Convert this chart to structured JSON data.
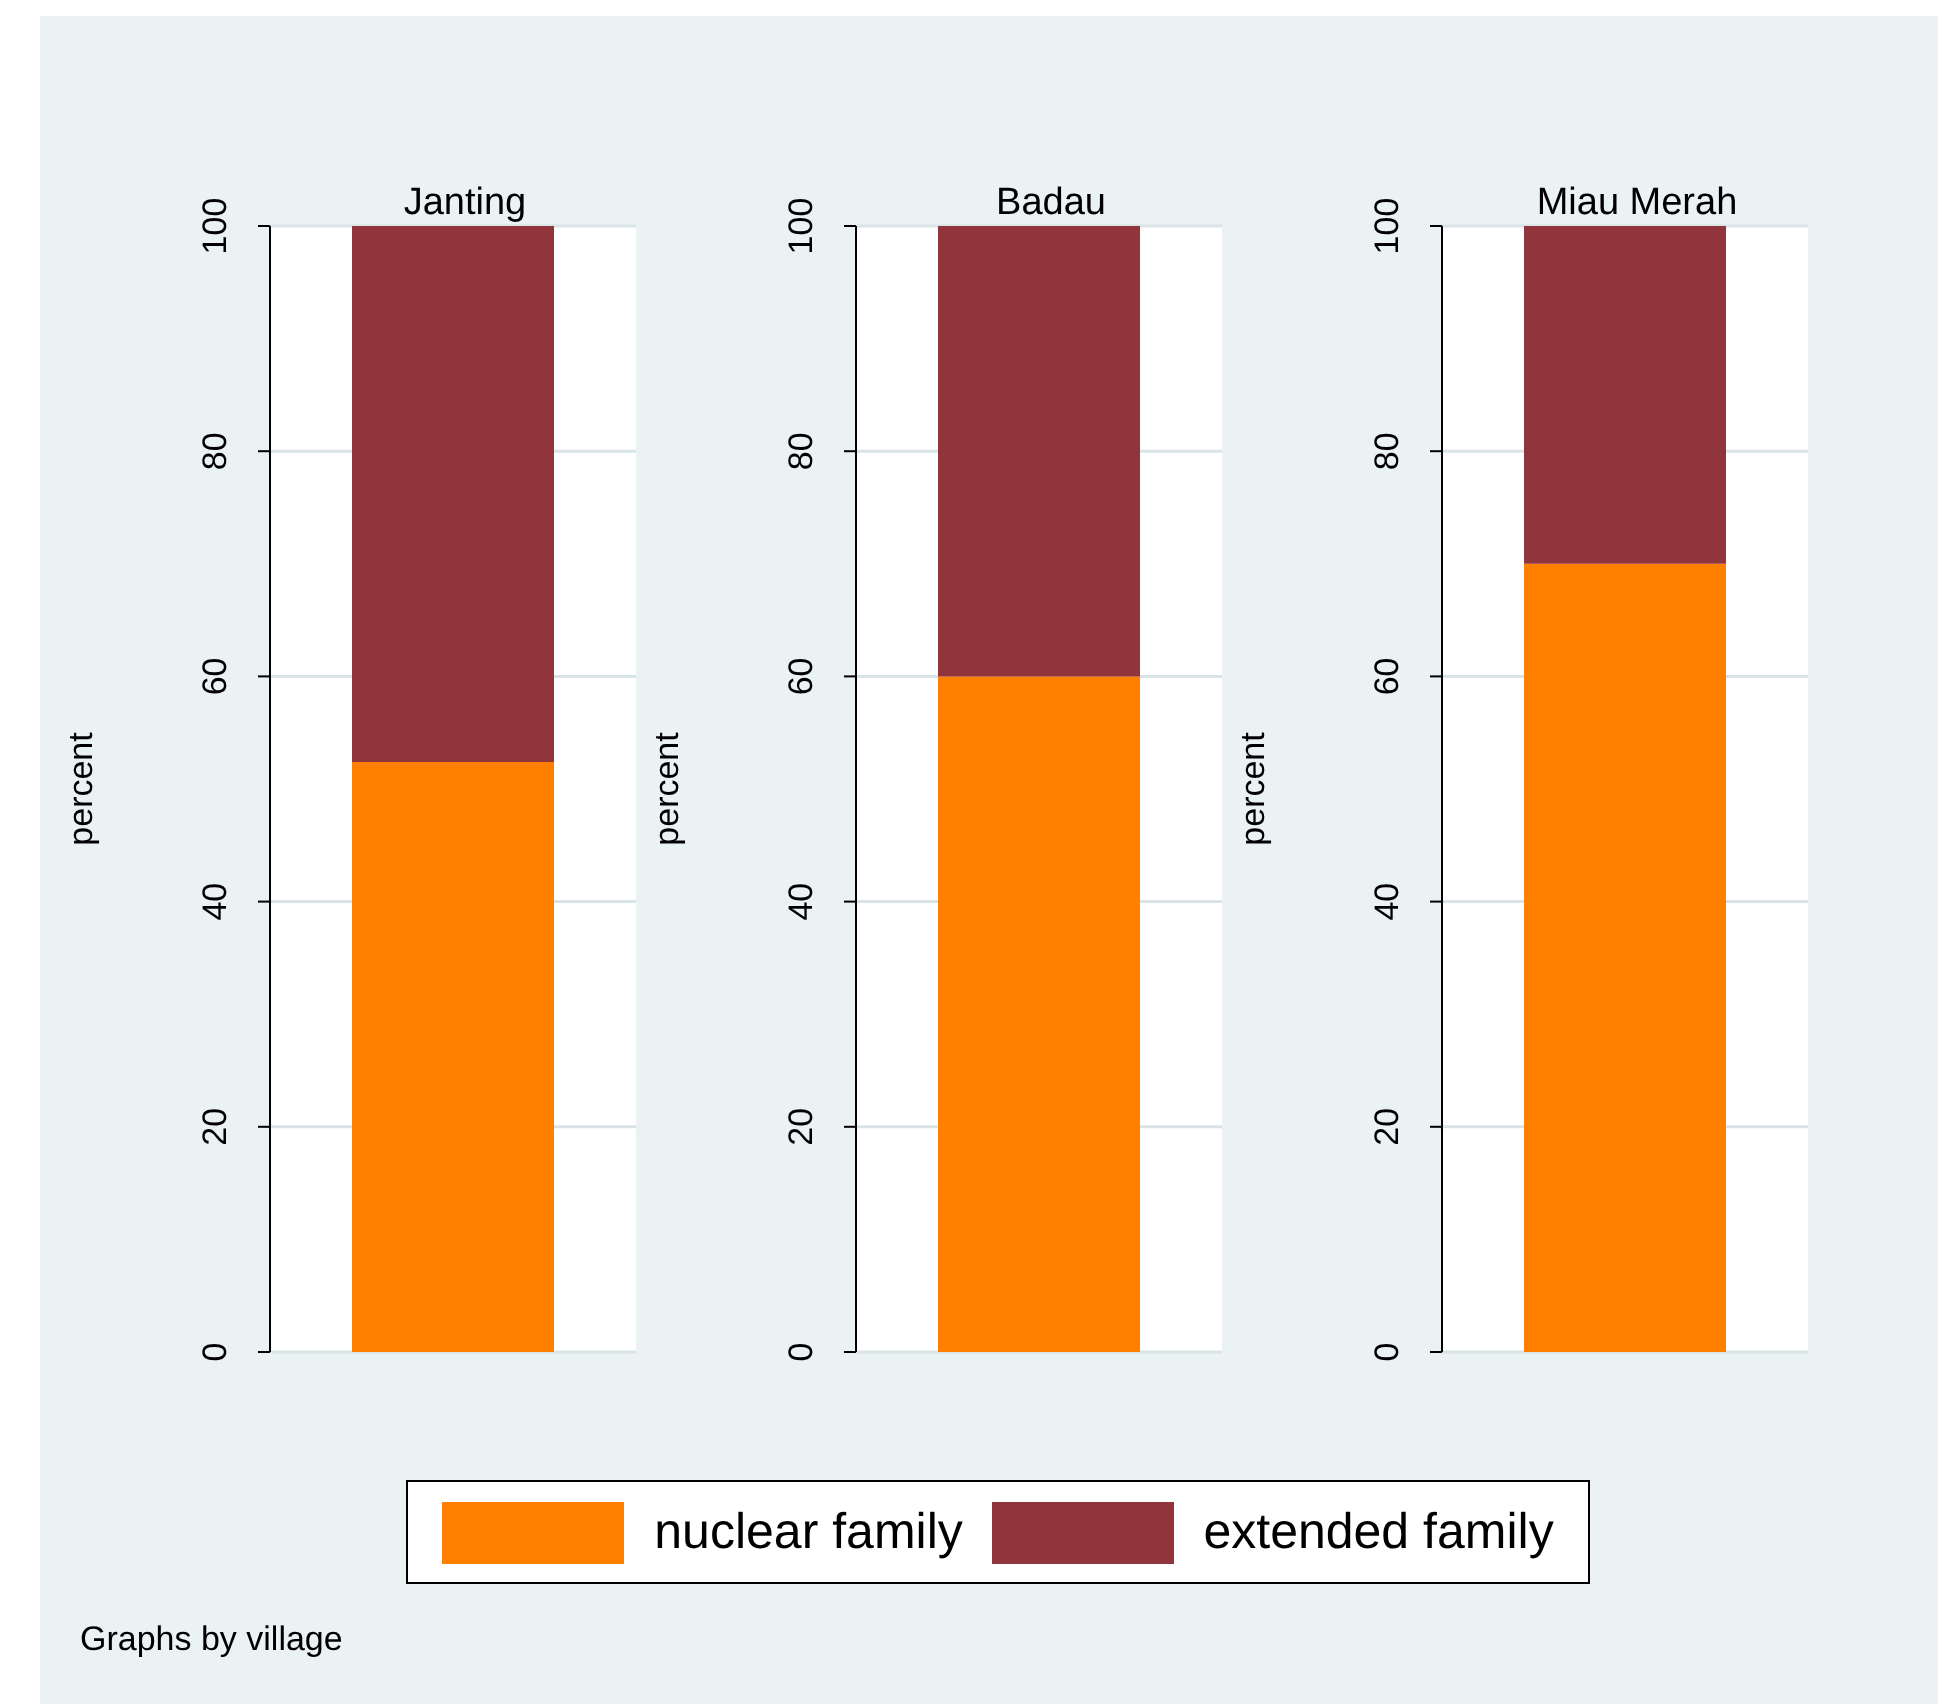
{
  "chart_data": [
    {
      "type": "bar",
      "title": "Janting",
      "ylabel": "percent",
      "categories": [
        null
      ],
      "stacked": true,
      "ylim": [
        0,
        100
      ],
      "yticks": [
        0,
        20,
        40,
        60,
        80,
        100
      ],
      "grid": "y",
      "legend": "bottom",
      "annotations": [
        "Graphs by village"
      ],
      "series": [
        {
          "name": "nuclear family",
          "color": "#ff7f00",
          "values": [
            52.4
          ]
        },
        {
          "name": "extended family",
          "color": "#90353b",
          "values": [
            47.6
          ]
        }
      ]
    },
    {
      "type": "bar",
      "title": "Badau",
      "ylabel": "percent",
      "categories": [
        null
      ],
      "stacked": true,
      "ylim": [
        0,
        100
      ],
      "yticks": [
        0,
        20,
        40,
        60,
        80,
        100
      ],
      "grid": "y",
      "series": [
        {
          "color": "#ff7f00",
          "values": [
            60
          ]
        },
        {
          "color": "#90353b",
          "values": [
            40
          ]
        }
      ]
    },
    {
      "type": "bar",
      "title": "Miau Merah",
      "ylabel": "percent",
      "categories": [
        null
      ],
      "stacked": true,
      "ylim": [
        0,
        100
      ],
      "yticks": [
        0,
        20,
        40,
        60,
        80,
        100
      ],
      "grid": "y",
      "series": [
        {
          "color": "#ff7f00",
          "values": [
            70
          ]
        },
        {
          "color": "#90353b",
          "values": [
            30
          ]
        }
      ]
    }
  ]
}
